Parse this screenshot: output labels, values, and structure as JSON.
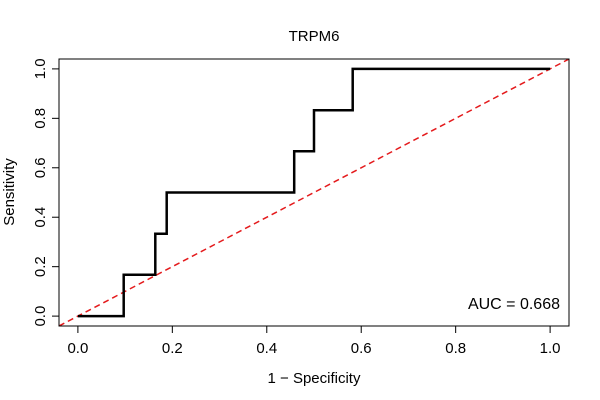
{
  "chart_data": {
    "type": "line",
    "title": "TRPM6",
    "xlabel": "1 − Specificity",
    "ylabel": "Sensitivity",
    "xlim": [
      -0.04,
      1.04
    ],
    "ylim": [
      -0.04,
      1.04
    ],
    "x_ticks": [
      0.0,
      0.2,
      0.4,
      0.6,
      0.8,
      1.0
    ],
    "x_tick_labels": [
      "0.0",
      "0.2",
      "0.4",
      "0.6",
      "0.8",
      "1.0"
    ],
    "y_ticks": [
      0.0,
      0.2,
      0.4,
      0.6,
      0.8,
      1.0
    ],
    "y_tick_labels": [
      "0.0",
      "0.2",
      "0.4",
      "0.6",
      "0.8",
      "1.0"
    ],
    "grid": false,
    "annotation": "AUC = 0.668",
    "series": [
      {
        "style": "solid",
        "color": "#000000",
        "x": [
          0.0,
          0.097,
          0.097,
          0.164,
          0.164,
          0.188,
          0.188,
          0.458,
          0.458,
          0.5,
          0.5,
          0.582,
          0.582,
          1.0
        ],
        "y": [
          0.0,
          0.0,
          0.167,
          0.167,
          0.333,
          0.333,
          0.5,
          0.5,
          0.667,
          0.667,
          0.833,
          0.833,
          1.0,
          1.0
        ]
      },
      {
        "style": "dashed",
        "color": "#e41a1c",
        "x": [
          -0.04,
          1.04
        ],
        "y": [
          -0.04,
          1.04
        ]
      }
    ]
  }
}
